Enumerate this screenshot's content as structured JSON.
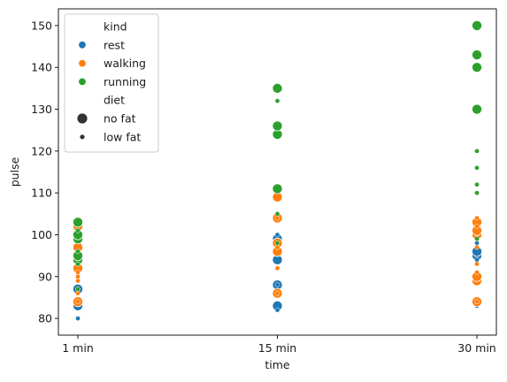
{
  "chart_data": {
    "type": "scatter",
    "xlabel": "time",
    "ylabel": "pulse",
    "categories": [
      "1 min",
      "15 min",
      "30 min"
    ],
    "ylim": [
      76,
      154
    ],
    "yticks": [
      80,
      90,
      100,
      110,
      120,
      130,
      140,
      150
    ],
    "grid": false,
    "legend": {
      "placement": "top-left",
      "hue_title": "kind",
      "size_title": "diet",
      "hue_entries": [
        {
          "label": "rest",
          "color": "#1f77b4"
        },
        {
          "label": "walking",
          "color": "#ff7f0e"
        },
        {
          "label": "running",
          "color": "#2ca02c"
        }
      ],
      "size_entries": [
        {
          "label": "no fat",
          "size": "large"
        },
        {
          "label": "low fat",
          "size": "small"
        }
      ]
    },
    "colors": {
      "rest": "#1f77b4",
      "walking": "#ff7f0e",
      "running": "#2ca02c"
    },
    "series": [
      {
        "kind": "rest",
        "diet": "no fat",
        "points": [
          {
            "x": "1 min",
            "y": 83
          },
          {
            "x": "1 min",
            "y": 87
          },
          {
            "x": "1 min",
            "y": 84
          },
          {
            "x": "15 min",
            "y": 83
          },
          {
            "x": "15 min",
            "y": 88
          },
          {
            "x": "15 min",
            "y": 94
          },
          {
            "x": "15 min",
            "y": 96
          },
          {
            "x": "15 min",
            "y": 98
          },
          {
            "x": "15 min",
            "y": 99
          },
          {
            "x": "30 min",
            "y": 84
          },
          {
            "x": "30 min",
            "y": 89
          },
          {
            "x": "30 min",
            "y": 95
          },
          {
            "x": "30 min",
            "y": 96
          },
          {
            "x": "30 min",
            "y": 100
          }
        ]
      },
      {
        "kind": "rest",
        "diet": "low fat",
        "points": [
          {
            "x": "1 min",
            "y": 80
          },
          {
            "x": "1 min",
            "y": 87
          },
          {
            "x": "1 min",
            "y": 92
          },
          {
            "x": "1 min",
            "y": 95
          },
          {
            "x": "1 min",
            "y": 98
          },
          {
            "x": "1 min",
            "y": 100
          },
          {
            "x": "15 min",
            "y": 82
          },
          {
            "x": "15 min",
            "y": 88
          },
          {
            "x": "15 min",
            "y": 92
          },
          {
            "x": "15 min",
            "y": 98
          },
          {
            "x": "15 min",
            "y": 100
          },
          {
            "x": "15 min",
            "y": 104
          },
          {
            "x": "30 min",
            "y": 83
          },
          {
            "x": "30 min",
            "y": 89
          },
          {
            "x": "30 min",
            "y": 94
          },
          {
            "x": "30 min",
            "y": 98
          },
          {
            "x": "30 min",
            "y": 101
          },
          {
            "x": "30 min",
            "y": 102
          }
        ]
      },
      {
        "kind": "walking",
        "diet": "no fat",
        "points": [
          {
            "x": "1 min",
            "y": 84
          },
          {
            "x": "1 min",
            "y": 92
          },
          {
            "x": "1 min",
            "y": 97
          },
          {
            "x": "1 min",
            "y": 100
          },
          {
            "x": "1 min",
            "y": 102
          },
          {
            "x": "15 min",
            "y": 86
          },
          {
            "x": "15 min",
            "y": 96
          },
          {
            "x": "15 min",
            "y": 98
          },
          {
            "x": "15 min",
            "y": 104
          },
          {
            "x": "15 min",
            "y": 109
          },
          {
            "x": "30 min",
            "y": 84
          },
          {
            "x": "30 min",
            "y": 89
          },
          {
            "x": "30 min",
            "y": 90
          },
          {
            "x": "30 min",
            "y": 100
          },
          {
            "x": "30 min",
            "y": 101
          },
          {
            "x": "30 min",
            "y": 103
          }
        ]
      },
      {
        "kind": "walking",
        "diet": "low fat",
        "points": [
          {
            "x": "1 min",
            "y": 84
          },
          {
            "x": "1 min",
            "y": 86
          },
          {
            "x": "1 min",
            "y": 89
          },
          {
            "x": "1 min",
            "y": 90
          },
          {
            "x": "1 min",
            "y": 91
          },
          {
            "x": "1 min",
            "y": 93
          },
          {
            "x": "1 min",
            "y": 96
          },
          {
            "x": "1 min",
            "y": 99
          },
          {
            "x": "15 min",
            "y": 86
          },
          {
            "x": "15 min",
            "y": 92
          },
          {
            "x": "15 min",
            "y": 97
          },
          {
            "x": "15 min",
            "y": 104
          },
          {
            "x": "30 min",
            "y": 84
          },
          {
            "x": "30 min",
            "y": 91
          },
          {
            "x": "30 min",
            "y": 93
          },
          {
            "x": "30 min",
            "y": 97
          },
          {
            "x": "30 min",
            "y": 102
          },
          {
            "x": "30 min",
            "y": 104
          }
        ]
      },
      {
        "kind": "running",
        "diet": "no fat",
        "points": [
          {
            "x": "1 min",
            "y": 94
          },
          {
            "x": "1 min",
            "y": 95
          },
          {
            "x": "1 min",
            "y": 99
          },
          {
            "x": "1 min",
            "y": 100
          },
          {
            "x": "1 min",
            "y": 103
          },
          {
            "x": "15 min",
            "y": 111
          },
          {
            "x": "15 min",
            "y": 124
          },
          {
            "x": "15 min",
            "y": 126
          },
          {
            "x": "15 min",
            "y": 135
          },
          {
            "x": "30 min",
            "y": 130
          },
          {
            "x": "30 min",
            "y": 140
          },
          {
            "x": "30 min",
            "y": 143
          },
          {
            "x": "30 min",
            "y": 150
          }
        ]
      },
      {
        "kind": "running",
        "diet": "low fat",
        "points": [
          {
            "x": "1 min",
            "y": 87
          },
          {
            "x": "1 min",
            "y": 93
          },
          {
            "x": "1 min",
            "y": 96
          },
          {
            "x": "1 min",
            "y": 101
          },
          {
            "x": "15 min",
            "y": 98
          },
          {
            "x": "15 min",
            "y": 105
          },
          {
            "x": "15 min",
            "y": 132
          },
          {
            "x": "30 min",
            "y": 99
          },
          {
            "x": "30 min",
            "y": 110
          },
          {
            "x": "30 min",
            "y": 112
          },
          {
            "x": "30 min",
            "y": 116
          },
          {
            "x": "30 min",
            "y": 120
          }
        ]
      }
    ]
  }
}
